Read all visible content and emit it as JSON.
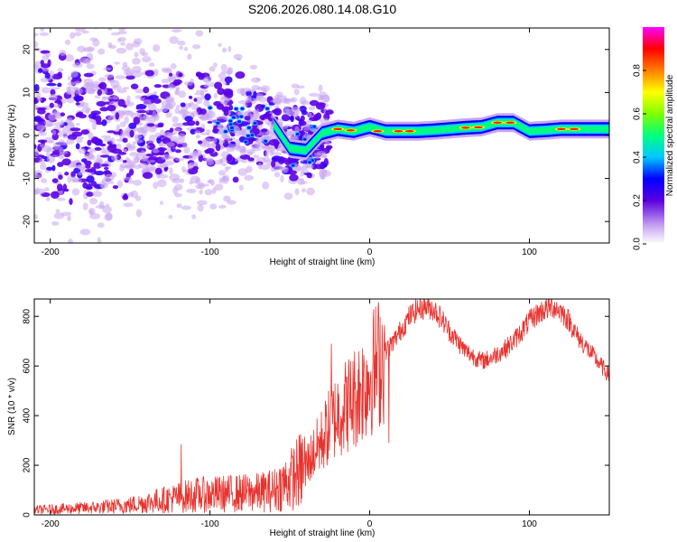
{
  "title": "S206.2026.080.14.08.G10",
  "chart_data": [
    {
      "type": "heatmap",
      "name": "spectrogram",
      "xlabel": "Height of straight line (km)",
      "ylabel": "Frequency (Hz)",
      "xlim": [
        -210,
        150
      ],
      "ylim": [
        -25,
        25
      ],
      "xticks": [
        -200,
        -100,
        0,
        100
      ],
      "yticks": [
        -20,
        -10,
        0,
        10,
        20
      ],
      "colorbar": {
        "label": "Normalized spectral amplitude",
        "range": [
          0,
          1
        ],
        "ticks": [
          "0.0",
          "0.2",
          "0.4",
          "0.6",
          "0.8"
        ],
        "tick_values": [
          0.0,
          0.2,
          0.4,
          0.6,
          0.8
        ]
      },
      "ridge": {
        "x": [
          -60,
          -50,
          -40,
          -30,
          -20,
          -10,
          -5,
          0,
          10,
          20,
          30,
          40,
          50,
          60,
          70,
          80,
          90,
          100,
          110,
          120,
          130,
          140,
          150
        ],
        "freq": [
          2.5,
          -3,
          -3.5,
          0.5,
          1.5,
          1,
          1.5,
          2,
          1,
          1,
          1,
          1.2,
          1.5,
          1.8,
          2,
          3,
          3,
          1,
          1.2,
          1.5,
          1.5,
          1.5,
          1.5
        ]
      }
    },
    {
      "type": "line",
      "name": "snr",
      "xlabel": "Height of straight line (km)",
      "ylabel": "SNR (10 * v/v)",
      "xlim": [
        -210,
        150
      ],
      "ylim": [
        0,
        870
      ],
      "xticks": [
        -200,
        -100,
        0,
        100
      ],
      "yticks": [
        0,
        200,
        400,
        600,
        800
      ],
      "color": "#e8332e",
      "envelope": {
        "x": [
          -210,
          -190,
          -170,
          -150,
          -130,
          -110,
          -90,
          -70,
          -60,
          -50,
          -40,
          -30,
          -25,
          -20,
          -15,
          -10,
          -5,
          0,
          5,
          10,
          15,
          20,
          25,
          30,
          35,
          40,
          45,
          50,
          55,
          60,
          65,
          70,
          75,
          80,
          85,
          90,
          95,
          100,
          105,
          110,
          115,
          120,
          125,
          130,
          135,
          140,
          145,
          150
        ],
        "y": [
          20,
          25,
          30,
          40,
          60,
          80,
          85,
          90,
          100,
          140,
          200,
          300,
          360,
          410,
          440,
          470,
          510,
          560,
          610,
          660,
          700,
          750,
          800,
          830,
          840,
          830,
          790,
          740,
          700,
          660,
          640,
          620,
          630,
          650,
          670,
          700,
          740,
          780,
          810,
          830,
          840,
          820,
          780,
          720,
          680,
          640,
          600,
          560
        ]
      },
      "spikes": [
        {
          "x": -118,
          "y": 285
        },
        {
          "x": -24,
          "y": 690
        },
        {
          "x": 12,
          "y": 290
        }
      ]
    }
  ]
}
